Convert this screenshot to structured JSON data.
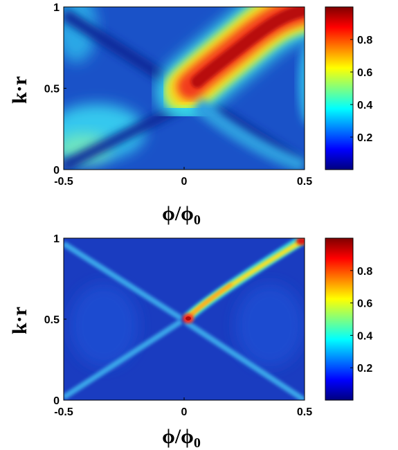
{
  "chart_data": [
    {
      "type": "heatmap",
      "title": "",
      "xlabel": "ϕ/ϕ",
      "xlabel_sub": "0",
      "ylabel": "k·r",
      "xlim": [
        -0.5,
        0.5
      ],
      "ylim": [
        0,
        1
      ],
      "x_ticks": [
        -0.5,
        0,
        0.5
      ],
      "x_tick_labels": [
        "-0.5",
        "0",
        "0.5"
      ],
      "y_ticks": [
        0,
        0.5,
        1
      ],
      "y_tick_labels": [
        "0",
        "0.5",
        "1"
      ],
      "colorbar": {
        "range": [
          0,
          1
        ],
        "ticks": [
          0.2,
          0.4,
          0.6,
          0.8
        ],
        "tick_labels": [
          "0.2",
          "0.4",
          "0.6",
          "0.8"
        ],
        "colormap": "jet"
      },
      "colors": [
        "#00007f",
        "#0000ff",
        "#00ffff",
        "#ffff00",
        "#ff0000",
        "#7f0000"
      ],
      "features": {
        "background": 0.18,
        "anti_crossing_branch": {
          "points": [
            [
              0.02,
              0.5
            ],
            [
              0.1,
              0.55
            ],
            [
              0.2,
              0.68
            ],
            [
              0.3,
              0.82
            ],
            [
              0.4,
              0.95
            ],
            [
              0.5,
              1.0
            ]
          ],
          "peak": 0.98
        },
        "left_lobe": {
          "center": [
            -0.35,
            0.25
          ],
          "peak": 0.45
        },
        "crossing_lines_peak": 0.3
      }
    },
    {
      "type": "heatmap",
      "title": "",
      "xlabel": "ϕ/ϕ",
      "xlabel_sub": "0",
      "ylabel": "k·r",
      "xlim": [
        -0.5,
        0.5
      ],
      "ylim": [
        0,
        1
      ],
      "x_ticks": [
        -0.5,
        0,
        0.5
      ],
      "x_tick_labels": [
        "-0.5",
        "0",
        "0.5"
      ],
      "y_ticks": [
        0,
        0.5,
        1
      ],
      "y_tick_labels": [
        "0",
        "0.5",
        "1"
      ],
      "colorbar": {
        "range": [
          0,
          1
        ],
        "ticks": [
          0.2,
          0.4,
          0.6,
          0.8
        ],
        "tick_labels": [
          "0.2",
          "0.4",
          "0.6",
          "0.8"
        ],
        "colormap": "jet"
      },
      "colors": [
        "#00007f",
        "#0000ff",
        "#00ffff",
        "#ffff00",
        "#ff0000",
        "#7f0000"
      ],
      "features": {
        "background": 0.12,
        "crossing_lines_peak": 0.35,
        "hot_spot": {
          "points": [
            [
              0.0,
              0.5
            ],
            [
              0.5,
              1.0
            ]
          ],
          "peak": 0.95
        }
      }
    }
  ]
}
